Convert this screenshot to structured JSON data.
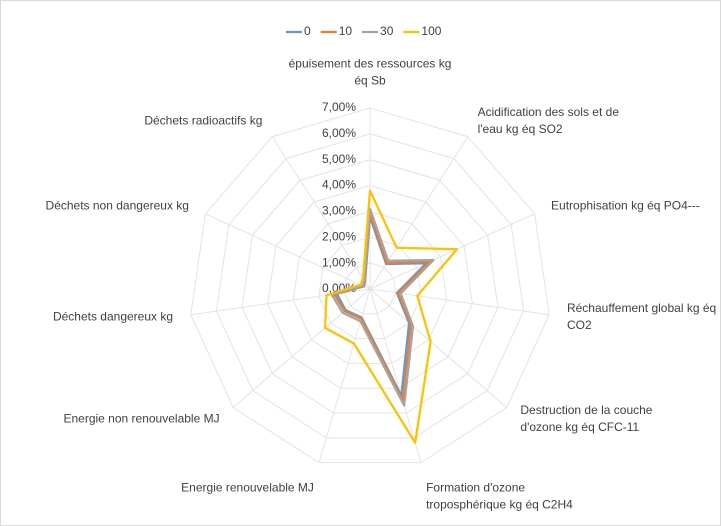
{
  "chart_data": {
    "type": "radar",
    "categories": [
      "épuisement des ressources kg éq Sb",
      "Acidification des sols et de l'eau kg éq SO2",
      "Eutrophisation kg éq PO4---",
      "Réchauffement global kg éq CO2",
      "Destruction de la couche d'ozone kg éq CFC-11",
      "Formation d'ozone troposphérique kg éq C2H4",
      "Energie renouvelable MJ",
      "Energie non renouvelable MJ",
      "Déchets dangereux kg",
      "Déchets non dangereux kg",
      "Déchets radioactifs kg"
    ],
    "series": [
      {
        "name": "0",
        "color": "#5b9bd5",
        "values": [
          2.8,
          1.15,
          2.4,
          1.05,
          2.0,
          4.3,
          1.15,
          1.25,
          1.3,
          0.25,
          0.35
        ]
      },
      {
        "name": "10",
        "color": "#ed7d31",
        "values": [
          2.95,
          1.2,
          2.55,
          1.1,
          2.1,
          4.5,
          1.2,
          1.3,
          1.4,
          0.28,
          0.38
        ]
      },
      {
        "name": "30",
        "color": "#a5a5a5",
        "values": [
          3.1,
          1.3,
          2.7,
          1.2,
          2.2,
          4.7,
          1.3,
          1.4,
          1.5,
          0.3,
          0.4
        ]
      },
      {
        "name": "100",
        "color": "#ffc000",
        "values": [
          3.8,
          1.9,
          3.7,
          1.85,
          3.1,
          6.2,
          2.2,
          2.3,
          1.7,
          0.4,
          0.5
        ]
      }
    ],
    "ylim": [
      0,
      7
    ],
    "yticks": [
      {
        "value": 0,
        "label": "0,00%"
      },
      {
        "value": 1,
        "label": "1,00%"
      },
      {
        "value": 2,
        "label": "2,00%"
      },
      {
        "value": 3,
        "label": "3,00%"
      },
      {
        "value": 4,
        "label": "4,00%"
      },
      {
        "value": 5,
        "label": "5,00%"
      },
      {
        "value": 6,
        "label": "6,00%"
      },
      {
        "value": 7,
        "label": "7,00%"
      }
    ],
    "grid": true,
    "legend": "top"
  }
}
